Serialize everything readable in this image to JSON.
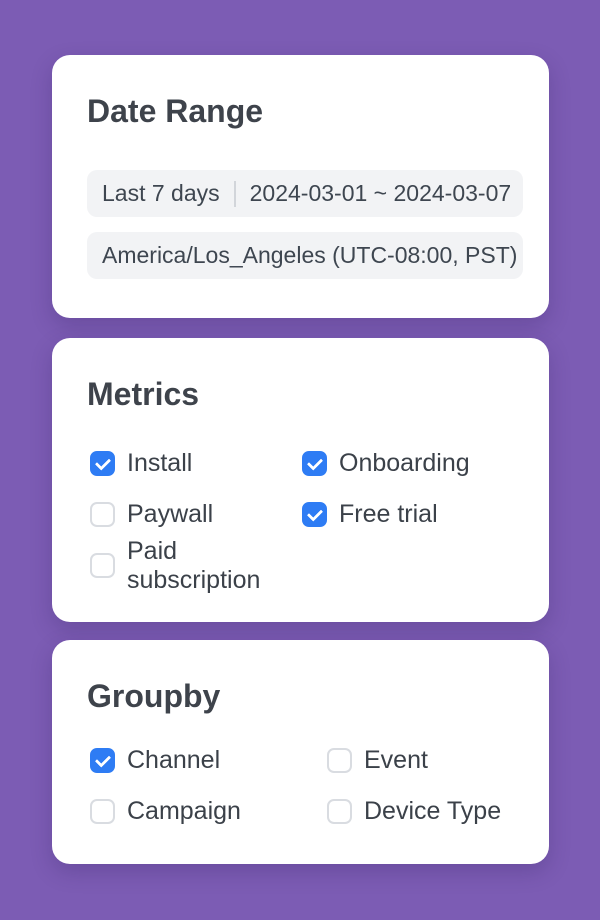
{
  "colors": {
    "background": "#7c5cb4",
    "card_background": "#ffffff",
    "checkbox_checked": "#2e7cf4",
    "pill_background": "#f2f3f5",
    "title_text": "#3e434b",
    "label_text": "#3b4149"
  },
  "date_range_card": {
    "title": "Date Range",
    "preset": "Last 7 days",
    "range": "2024-03-01 ~ 2024-03-07",
    "timezone": "America/Los_Angeles (UTC-08:00, PST)"
  },
  "metrics_card": {
    "title": "Metrics",
    "options": [
      {
        "label": "Install",
        "checked": true
      },
      {
        "label": "Onboarding",
        "checked": true
      },
      {
        "label": "Paywall",
        "checked": false
      },
      {
        "label": "Free trial",
        "checked": true
      },
      {
        "label": "Paid subscription",
        "checked": false
      }
    ]
  },
  "groupby_card": {
    "title": "Groupby",
    "options": [
      {
        "label": "Channel",
        "checked": true
      },
      {
        "label": "Event",
        "checked": false
      },
      {
        "label": "Campaign",
        "checked": false
      },
      {
        "label": "Device Type",
        "checked": false
      }
    ]
  }
}
